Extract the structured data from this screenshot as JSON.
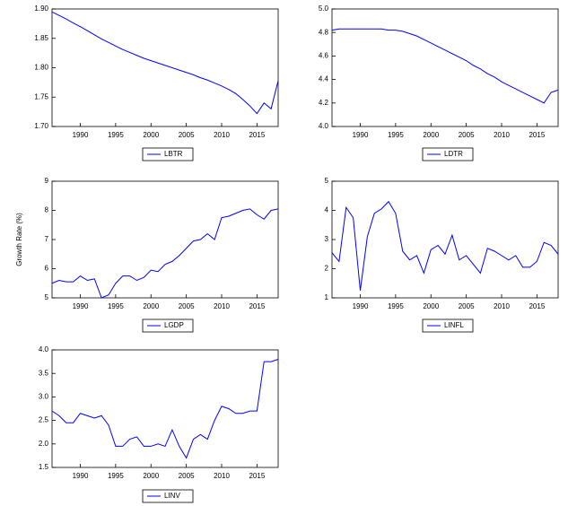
{
  "chart_data": [
    {
      "type": "line",
      "x": [
        1986,
        1987,
        1988,
        1989,
        1990,
        1991,
        1992,
        1993,
        1994,
        1995,
        1996,
        1997,
        1998,
        1999,
        2000,
        2001,
        2002,
        2003,
        2004,
        2005,
        2006,
        2007,
        2008,
        2009,
        2010,
        2011,
        2012,
        2013,
        2014,
        2015,
        2016,
        2017,
        2018
      ],
      "xlim": [
        1986,
        2018
      ],
      "xticks": [
        1990,
        1995,
        2000,
        2005,
        2010,
        2015
      ],
      "ylim": [
        1.7,
        1.9
      ],
      "yticks": [
        {
          "value": 1.7,
          "label": "1.70"
        },
        1.75,
        {
          "value": 1.8,
          "label": "1.80"
        },
        1.85,
        {
          "value": 1.9,
          "label": "1.90"
        }
      ],
      "series": [
        {
          "name": "LBTR",
          "color": "#0000ff",
          "values": [
            1.895,
            1.889,
            1.883,
            1.876,
            1.87,
            1.863,
            1.856,
            1.849,
            1.843,
            1.837,
            1.831,
            1.826,
            1.821,
            1.816,
            1.812,
            1.808,
            1.804,
            1.8,
            1.796,
            1.792,
            1.788,
            1.783,
            1.779,
            1.774,
            1.769,
            1.763,
            1.756,
            1.746,
            1.735,
            1.722,
            1.74,
            1.73,
            1.778
          ]
        }
      ]
    },
    {
      "type": "line",
      "x": [
        1986,
        1987,
        1988,
        1989,
        1990,
        1991,
        1992,
        1993,
        1994,
        1995,
        1996,
        1997,
        1998,
        1999,
        2000,
        2001,
        2002,
        2003,
        2004,
        2005,
        2006,
        2007,
        2008,
        2009,
        2010,
        2011,
        2012,
        2013,
        2014,
        2015,
        2016,
        2017,
        2018
      ],
      "xlim": [
        1986,
        2018
      ],
      "xticks": [
        1990,
        1995,
        2000,
        2005,
        2010,
        2015
      ],
      "ylim": [
        4.0,
        5.0
      ],
      "yticks": [
        {
          "value": 4.0,
          "label": "4.0"
        },
        4.2,
        4.4,
        4.6,
        4.8,
        {
          "value": 5.0,
          "label": "5.0"
        }
      ],
      "series": [
        {
          "name": "LDTR",
          "color": "#0000ff",
          "values": [
            4.82,
            4.83,
            4.83,
            4.83,
            4.83,
            4.83,
            4.83,
            4.83,
            4.82,
            4.82,
            4.81,
            4.79,
            4.77,
            4.74,
            4.71,
            4.68,
            4.65,
            4.62,
            4.59,
            4.56,
            4.52,
            4.49,
            4.45,
            4.42,
            4.38,
            4.35,
            4.32,
            4.29,
            4.26,
            4.23,
            4.2,
            4.29,
            4.31
          ]
        }
      ]
    },
    {
      "type": "line",
      "y_label": "Growth Rate (%)",
      "x": [
        1986,
        1987,
        1988,
        1989,
        1990,
        1991,
        1992,
        1993,
        1994,
        1995,
        1996,
        1997,
        1998,
        1999,
        2000,
        2001,
        2002,
        2003,
        2004,
        2005,
        2006,
        2007,
        2008,
        2009,
        2010,
        2011,
        2012,
        2013,
        2014,
        2015,
        2016,
        2017,
        2018
      ],
      "xlim": [
        1986,
        2018
      ],
      "xticks": [
        1990,
        1995,
        2000,
        2005,
        2010,
        2015
      ],
      "ylim": [
        5,
        9
      ],
      "yticks": [
        5,
        6,
        7,
        8,
        9
      ],
      "series": [
        {
          "name": "LGDP",
          "color": "#0000ff",
          "values": [
            5.5,
            5.6,
            5.55,
            5.55,
            5.75,
            5.6,
            5.65,
            5.0,
            5.1,
            5.5,
            5.75,
            5.75,
            5.6,
            5.7,
            5.95,
            5.9,
            6.15,
            6.25,
            6.45,
            6.7,
            6.95,
            7.0,
            7.2,
            7.0,
            7.75,
            7.8,
            7.9,
            8.0,
            8.05,
            7.85,
            7.7,
            8.0,
            8.05
          ]
        }
      ]
    },
    {
      "type": "line",
      "x": [
        1986,
        1987,
        1988,
        1989,
        1990,
        1991,
        1992,
        1993,
        1994,
        1995,
        1996,
        1997,
        1998,
        1999,
        2000,
        2001,
        2002,
        2003,
        2004,
        2005,
        2006,
        2007,
        2008,
        2009,
        2010,
        2011,
        2012,
        2013,
        2014,
        2015,
        2016,
        2017,
        2018
      ],
      "xlim": [
        1986,
        2018
      ],
      "xticks": [
        1990,
        1995,
        2000,
        2005,
        2010,
        2015
      ],
      "ylim": [
        1,
        5
      ],
      "yticks": [
        1,
        2,
        3,
        4,
        5
      ],
      "series": [
        {
          "name": "LINFL",
          "color": "#0000ff",
          "values": [
            2.55,
            2.25,
            4.1,
            3.75,
            1.25,
            3.1,
            3.9,
            4.05,
            4.3,
            3.9,
            2.6,
            2.3,
            2.45,
            1.85,
            2.65,
            2.8,
            2.5,
            3.15,
            2.3,
            2.45,
            2.15,
            1.85,
            2.7,
            2.6,
            2.45,
            2.3,
            2.45,
            2.05,
            2.05,
            2.25,
            2.9,
            2.8,
            2.5
          ]
        }
      ]
    },
    {
      "type": "line",
      "x": [
        1986,
        1987,
        1988,
        1989,
        1990,
        1991,
        1992,
        1993,
        1994,
        1995,
        1996,
        1997,
        1998,
        1999,
        2000,
        2001,
        2002,
        2003,
        2004,
        2005,
        2006,
        2007,
        2008,
        2009,
        2010,
        2011,
        2012,
        2013,
        2014,
        2015,
        2016,
        2017,
        2018
      ],
      "xlim": [
        1986,
        2018
      ],
      "xticks": [
        1990,
        1995,
        2000,
        2005,
        2010,
        2015
      ],
      "ylim": [
        1.5,
        4.0
      ],
      "yticks": [
        1.5,
        {
          "value": 2.0,
          "label": "2.0"
        },
        2.5,
        {
          "value": 3.0,
          "label": "3.0"
        },
        3.5,
        {
          "value": 4.0,
          "label": "4.0"
        }
      ],
      "series": [
        {
          "name": "LINV",
          "color": "#0000ff",
          "values": [
            2.7,
            2.6,
            2.45,
            2.45,
            2.65,
            2.6,
            2.55,
            2.6,
            2.4,
            1.95,
            1.95,
            2.1,
            2.15,
            1.95,
            1.95,
            2.0,
            1.95,
            2.3,
            1.95,
            1.7,
            2.1,
            2.2,
            2.1,
            2.5,
            2.8,
            2.75,
            2.65,
            2.65,
            2.7,
            2.7,
            3.75,
            3.75,
            3.8
          ]
        }
      ]
    }
  ]
}
